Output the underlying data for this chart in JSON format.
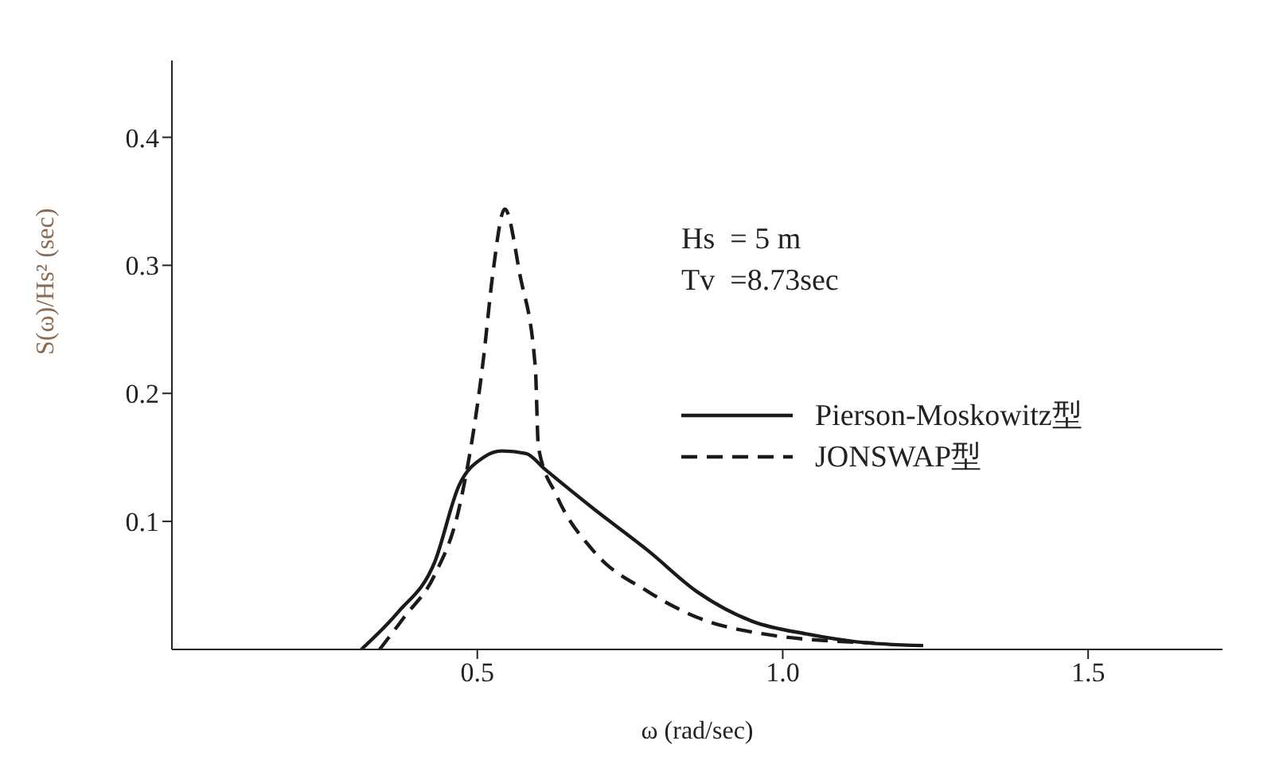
{
  "chart_data": {
    "type": "line",
    "xlabel": "ω (rad/sec)",
    "ylabel": "S(ω)/Hs² (sec)",
    "xlim": [
      0,
      1.72
    ],
    "xticks": [
      0.5,
      {
        "value": 1,
        "label": "1.0"
      },
      1.5
    ],
    "ylim": [
      0,
      0.46
    ],
    "yticks": [
      0.1,
      0.2,
      0.3,
      0.4
    ],
    "grid": false,
    "legend": "right",
    "marker": "none",
    "annotations": [
      "Hs  = 5 m",
      "Tv  =8.73sec"
    ],
    "series": [
      {
        "name": "Pierson-Moskowitz型",
        "color": "#1a1a1a",
        "line_style": "solid",
        "x": [
          0.31,
          0.37,
          0.43,
          0.47,
          0.51,
          0.54,
          0.58,
          0.61,
          0.69,
          0.78,
          0.86,
          0.95,
          1.04,
          1.12,
          1.23
        ],
        "values": [
          0,
          0.029,
          0.068,
          0.128,
          0.15,
          0.155,
          0.153,
          0.141,
          0.11,
          0.077,
          0.045,
          0.022,
          0.012,
          0.006,
          0.003
        ]
      },
      {
        "name": "JONSWAP型",
        "color": "#1a1a1a",
        "line_style": "dashed",
        "x": [
          0.34,
          0.38,
          0.43,
          0.47,
          0.51,
          0.525,
          0.545,
          0.57,
          0.595,
          0.6,
          0.63,
          0.69,
          0.78,
          0.86,
          0.97,
          1.15
        ],
        "values": [
          0,
          0.025,
          0.058,
          0.11,
          0.227,
          0.292,
          0.344,
          0.292,
          0.22,
          0.158,
          0.12,
          0.077,
          0.045,
          0.025,
          0.012,
          0.005
        ]
      }
    ]
  }
}
